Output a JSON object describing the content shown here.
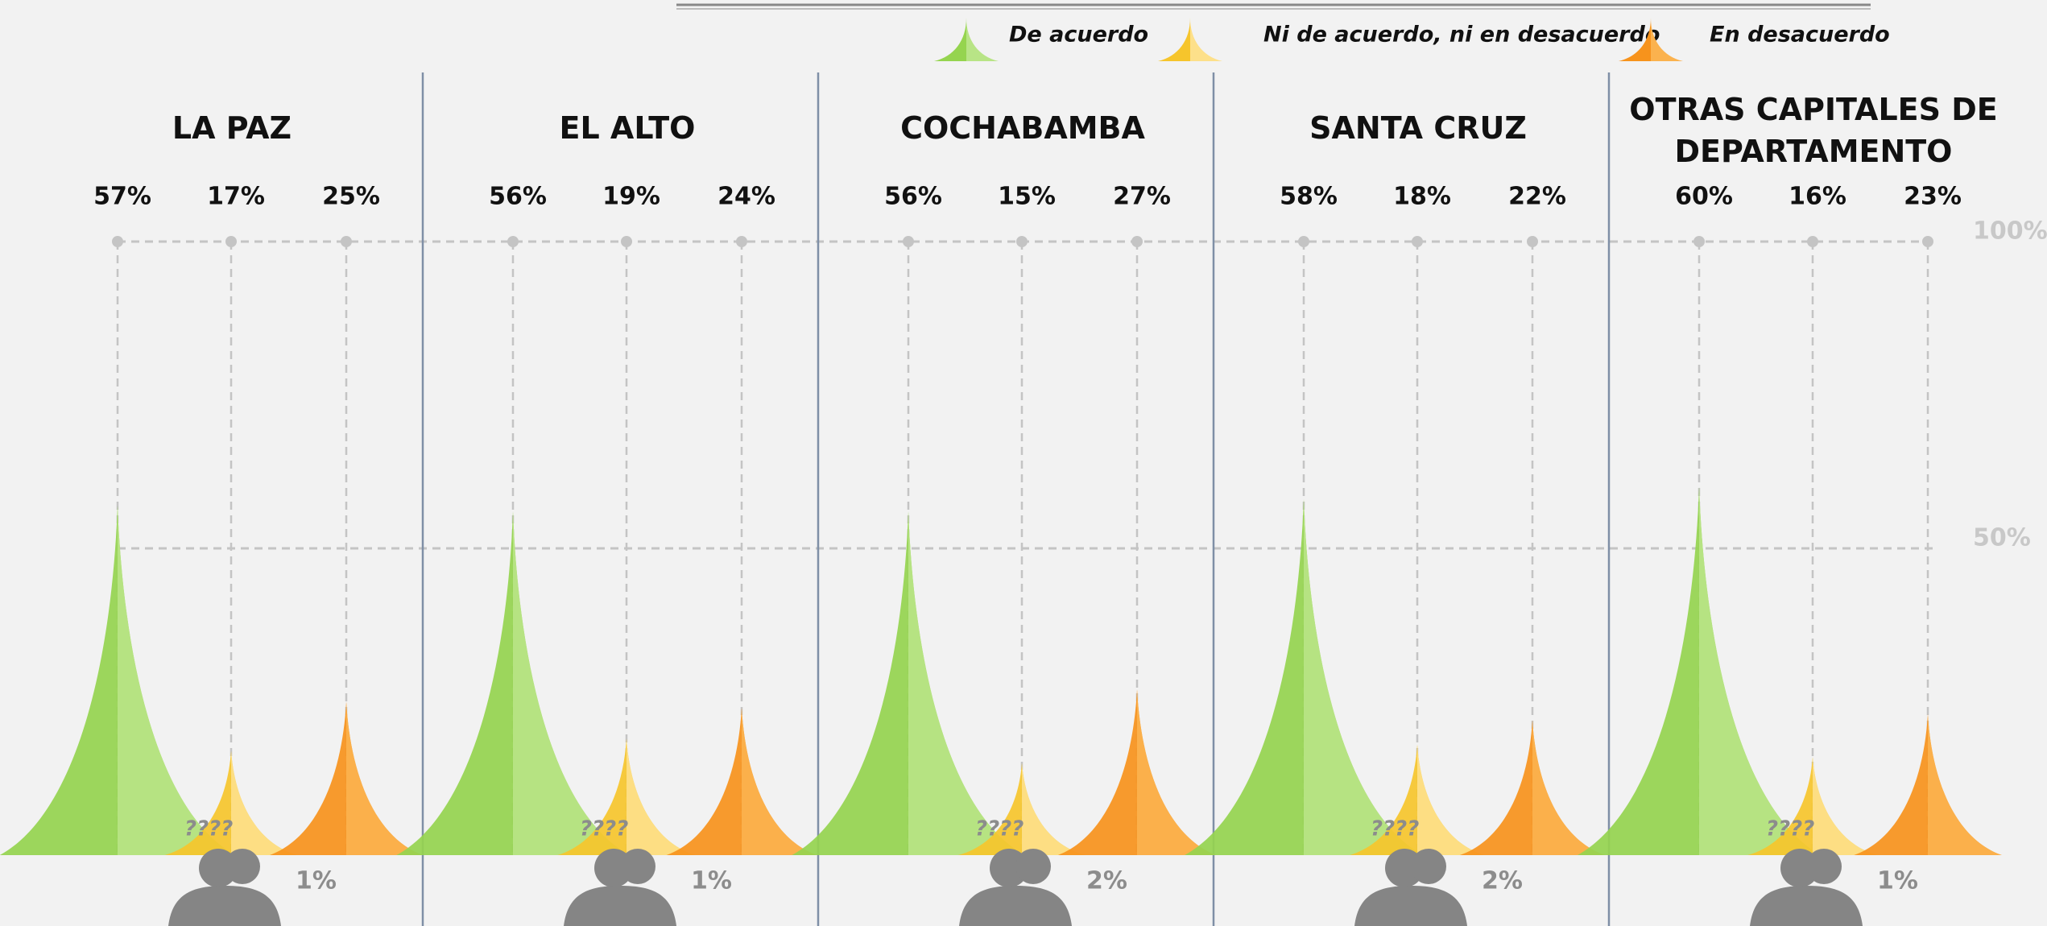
{
  "chart_data": {
    "type": "spike",
    "categories": [
      "LA PAZ",
      "EL ALTO",
      "COCHABAMBA",
      "SANTA CRUZ",
      "OTRAS CAPITALES DE DEPARTAMENTO"
    ],
    "series": [
      {
        "name": "De acuerdo",
        "color": "#95d44f",
        "light": "#b8e486",
        "values": [
          57,
          56,
          56,
          58,
          60
        ],
        "value_labels": [
          "57%",
          "56%",
          "56%",
          "58%",
          "60%"
        ]
      },
      {
        "name": "Ni de acuerdo, ni en desacuerdo",
        "color": "#f6c52c",
        "light": "#fde08a",
        "values": [
          17,
          19,
          15,
          18,
          16
        ],
        "value_labels": [
          "17%",
          "19%",
          "15%",
          "18%",
          "16%"
        ]
      },
      {
        "name": "En desacuerdo",
        "color": "#f7931c",
        "light": "#fbb24e",
        "values": [
          25,
          24,
          27,
          22,
          23
        ],
        "value_labels": [
          "25%",
          "24%",
          "27%",
          "22%",
          "23%"
        ]
      }
    ],
    "extra": {
      "values": [
        1,
        1,
        2,
        2,
        1
      ],
      "value_labels": [
        "1%",
        "1%",
        "2%",
        "2%",
        "1%"
      ],
      "mark": "????"
    },
    "ylim": [
      0,
      100
    ],
    "yticks": [
      {
        "value": 50,
        "label": "50%"
      },
      {
        "value": 100,
        "label": "100%"
      }
    ],
    "grid": true
  }
}
